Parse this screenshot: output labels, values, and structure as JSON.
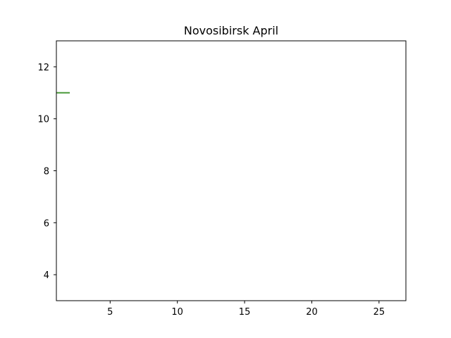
{
  "chart_data": {
    "type": "line",
    "title": "Novosibirsk April",
    "xlabel": "",
    "ylabel": "",
    "xlim": [
      1,
      27
    ],
    "ylim": [
      3,
      13
    ],
    "x_ticks": [
      5,
      10,
      15,
      20,
      25
    ],
    "y_ticks": [
      4,
      6,
      8,
      10,
      12
    ],
    "grid": false,
    "series": [
      {
        "x": [
          1,
          2
        ],
        "y": [
          11,
          11
        ],
        "color": "#4a9a3a"
      }
    ]
  }
}
